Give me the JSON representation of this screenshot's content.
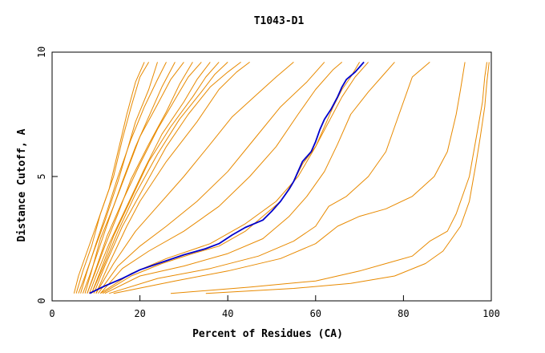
{
  "chart_data": {
    "type": "line",
    "title": "T1043-D1",
    "xlabel": "Percent of Residues (CA)",
    "ylabel": "Distance Cutoff, A",
    "xlim": [
      0,
      100
    ],
    "ylim": [
      0,
      10
    ],
    "x_ticks": [
      "0",
      "20",
      "40",
      "60",
      "80",
      "100"
    ],
    "y_ticks": [
      "0",
      "5",
      "10"
    ],
    "grid": false,
    "colors": {
      "highlight": "#0000cc",
      "others": "#e88a00",
      "axis": "#000000"
    },
    "highlight_series": {
      "points": [
        [
          8.5,
          0.3
        ],
        [
          12,
          0.6
        ],
        [
          16,
          0.9
        ],
        [
          20,
          1.25
        ],
        [
          25,
          1.55
        ],
        [
          30,
          1.85
        ],
        [
          35,
          2.1
        ],
        [
          38,
          2.3
        ],
        [
          41,
          2.65
        ],
        [
          44,
          2.95
        ],
        [
          48,
          3.25
        ],
        [
          50,
          3.6
        ],
        [
          52,
          4.0
        ],
        [
          54,
          4.5
        ],
        [
          55,
          4.8
        ],
        [
          56,
          5.2
        ],
        [
          57,
          5.6
        ],
        [
          59,
          6.0
        ],
        [
          60,
          6.4
        ],
        [
          61,
          6.9
        ],
        [
          62,
          7.3
        ],
        [
          63.5,
          7.7
        ],
        [
          65,
          8.2
        ],
        [
          66,
          8.6
        ],
        [
          67,
          8.9
        ],
        [
          69,
          9.2
        ],
        [
          71,
          9.6
        ]
      ]
    },
    "other_series": [
      {
        "points": [
          [
            5,
            0.3
          ],
          [
            6,
            1.0
          ],
          [
            8,
            2.0
          ],
          [
            10,
            3.0
          ],
          [
            13,
            4.5
          ],
          [
            15,
            6.0
          ],
          [
            17,
            7.5
          ],
          [
            19,
            8.8
          ],
          [
            21,
            9.6
          ]
        ]
      },
      {
        "points": [
          [
            5.5,
            0.3
          ],
          [
            7,
            1.2
          ],
          [
            9,
            2.2
          ],
          [
            11,
            3.5
          ],
          [
            14,
            5.0
          ],
          [
            16,
            6.5
          ],
          [
            18,
            7.8
          ],
          [
            20,
            9.0
          ],
          [
            22,
            9.6
          ]
        ]
      },
      {
        "points": [
          [
            6,
            0.3
          ],
          [
            7.5,
            1.0
          ],
          [
            9.5,
            2.0
          ],
          [
            12,
            3.2
          ],
          [
            15,
            4.8
          ],
          [
            17,
            6.0
          ],
          [
            19,
            7.2
          ],
          [
            22,
            8.5
          ],
          [
            24,
            9.6
          ]
        ]
      },
      {
        "points": [
          [
            6.5,
            0.3
          ],
          [
            8,
            1.2
          ],
          [
            10,
            2.3
          ],
          [
            12.5,
            3.6
          ],
          [
            15,
            5.0
          ],
          [
            18,
            6.5
          ],
          [
            21,
            7.8
          ],
          [
            24,
            8.9
          ],
          [
            26,
            9.6
          ]
        ]
      },
      {
        "points": [
          [
            7,
            0.3
          ],
          [
            8.5,
            1.0
          ],
          [
            10.5,
            2.0
          ],
          [
            13,
            3.3
          ],
          [
            16,
            4.8
          ],
          [
            19,
            6.2
          ],
          [
            22,
            7.4
          ],
          [
            25,
            8.6
          ],
          [
            28,
            9.6
          ]
        ]
      },
      {
        "points": [
          [
            7.5,
            0.3
          ],
          [
            9,
            1.2
          ],
          [
            11,
            2.5
          ],
          [
            14,
            3.8
          ],
          [
            17,
            5.2
          ],
          [
            20,
            6.6
          ],
          [
            24,
            7.9
          ],
          [
            27,
            8.9
          ],
          [
            30,
            9.6
          ]
        ]
      },
      {
        "points": [
          [
            8,
            0.3
          ],
          [
            9.5,
            1.0
          ],
          [
            12,
            2.2
          ],
          [
            15,
            3.5
          ],
          [
            18,
            4.9
          ],
          [
            22,
            6.3
          ],
          [
            26,
            7.6
          ],
          [
            29,
            8.7
          ],
          [
            32,
            9.6
          ]
        ]
      },
      {
        "points": [
          [
            8,
            0.3
          ],
          [
            10,
            1.3
          ],
          [
            12.5,
            2.6
          ],
          [
            16,
            4.0
          ],
          [
            20,
            5.5
          ],
          [
            24,
            6.9
          ],
          [
            28,
            8.1
          ],
          [
            31,
            9.0
          ],
          [
            34,
            9.6
          ]
        ]
      },
      {
        "points": [
          [
            8.5,
            0.3
          ],
          [
            10,
            1.0
          ],
          [
            13,
            2.3
          ],
          [
            17,
            3.8
          ],
          [
            21,
            5.3
          ],
          [
            25,
            6.7
          ],
          [
            30,
            8.0
          ],
          [
            33,
            8.9
          ],
          [
            36,
            9.6
          ]
        ]
      },
      {
        "points": [
          [
            9,
            0.3
          ],
          [
            11,
            1.2
          ],
          [
            14,
            2.6
          ],
          [
            18,
            4.1
          ],
          [
            22,
            5.6
          ],
          [
            27,
            7.0
          ],
          [
            32,
            8.2
          ],
          [
            35,
            9.0
          ],
          [
            38,
            9.6
          ]
        ]
      },
      {
        "points": [
          [
            9,
            0.3
          ],
          [
            11.5,
            1.3
          ],
          [
            15,
            2.8
          ],
          [
            19,
            4.3
          ],
          [
            24,
            5.9
          ],
          [
            29,
            7.3
          ],
          [
            34,
            8.4
          ],
          [
            37,
            9.1
          ],
          [
            40,
            9.6
          ]
        ]
      },
      {
        "points": [
          [
            9.5,
            0.3
          ],
          [
            12,
            1.4
          ],
          [
            16,
            3.0
          ],
          [
            21,
            4.6
          ],
          [
            26,
            6.2
          ],
          [
            31,
            7.5
          ],
          [
            36,
            8.6
          ],
          [
            40,
            9.2
          ],
          [
            43,
            9.6
          ]
        ]
      },
      {
        "points": [
          [
            10,
            0.3
          ],
          [
            13,
            1.5
          ],
          [
            17,
            3.0
          ],
          [
            20,
            4.0
          ],
          [
            26,
            5.6
          ],
          [
            33,
            7.2
          ],
          [
            38,
            8.5
          ],
          [
            42,
            9.2
          ],
          [
            45,
            9.6
          ]
        ]
      },
      {
        "points": [
          [
            10,
            0.3
          ],
          [
            14,
            1.5
          ],
          [
            19,
            2.8
          ],
          [
            24,
            3.8
          ],
          [
            30,
            5.0
          ],
          [
            36,
            6.3
          ],
          [
            41,
            7.4
          ],
          [
            46,
            8.2
          ],
          [
            51,
            9.0
          ],
          [
            55,
            9.6
          ]
        ]
      },
      {
        "points": [
          [
            10.5,
            0.3
          ],
          [
            15,
            1.4
          ],
          [
            20,
            2.2
          ],
          [
            26,
            3.0
          ],
          [
            33,
            4.0
          ],
          [
            40,
            5.2
          ],
          [
            46,
            6.5
          ],
          [
            52,
            7.8
          ],
          [
            58,
            8.8
          ],
          [
            62,
            9.6
          ]
        ]
      },
      {
        "points": [
          [
            11,
            0.3
          ],
          [
            16,
            1.3
          ],
          [
            22,
            2.0
          ],
          [
            30,
            2.8
          ],
          [
            38,
            3.8
          ],
          [
            45,
            5.0
          ],
          [
            51,
            6.2
          ],
          [
            56,
            7.5
          ],
          [
            60,
            8.5
          ],
          [
            64,
            9.3
          ],
          [
            66,
            9.6
          ]
        ]
      },
      {
        "points": [
          [
            11,
            0.3
          ],
          [
            18,
            1.1
          ],
          [
            26,
            1.7
          ],
          [
            36,
            2.3
          ],
          [
            44,
            3.1
          ],
          [
            51,
            4.0
          ],
          [
            56,
            5.0
          ],
          [
            60,
            6.2
          ],
          [
            63,
            7.2
          ],
          [
            66,
            8.2
          ],
          [
            69,
            9.0
          ],
          [
            72,
            9.6
          ]
        ]
      },
      {
        "points": [
          [
            11.5,
            0.3
          ],
          [
            18,
            1.0
          ],
          [
            25,
            1.5
          ],
          [
            32,
            1.9
          ],
          [
            38,
            2.2
          ],
          [
            44,
            2.8
          ],
          [
            48,
            3.4
          ],
          [
            52,
            4.0
          ],
          [
            55,
            4.8
          ],
          [
            57,
            5.5
          ],
          [
            60,
            6.2
          ],
          [
            62,
            7.0
          ],
          [
            64,
            7.8
          ],
          [
            66,
            8.5
          ],
          [
            68,
            9.0
          ],
          [
            70,
            9.6
          ]
        ]
      },
      {
        "points": [
          [
            12,
            0.3
          ],
          [
            20,
            1.0
          ],
          [
            30,
            1.4
          ],
          [
            40,
            1.9
          ],
          [
            48,
            2.5
          ],
          [
            54,
            3.4
          ],
          [
            58,
            4.2
          ],
          [
            62,
            5.2
          ],
          [
            65,
            6.3
          ],
          [
            68,
            7.5
          ],
          [
            72,
            8.4
          ],
          [
            75,
            9.0
          ],
          [
            78,
            9.6
          ]
        ]
      },
      {
        "points": [
          [
            13,
            0.3
          ],
          [
            24,
            0.9
          ],
          [
            36,
            1.3
          ],
          [
            47,
            1.8
          ],
          [
            55,
            2.4
          ],
          [
            60,
            3.0
          ],
          [
            63,
            3.8
          ],
          [
            67,
            4.2
          ],
          [
            72,
            5.0
          ],
          [
            76,
            6.0
          ],
          [
            78,
            7.0
          ],
          [
            80,
            8.0
          ],
          [
            82,
            9.0
          ],
          [
            86,
            9.6
          ]
        ]
      },
      {
        "points": [
          [
            14,
            0.3
          ],
          [
            28,
            0.8
          ],
          [
            40,
            1.2
          ],
          [
            52,
            1.7
          ],
          [
            60,
            2.3
          ],
          [
            65,
            3.0
          ],
          [
            70,
            3.4
          ],
          [
            76,
            3.7
          ],
          [
            82,
            4.2
          ],
          [
            87,
            5.0
          ],
          [
            90,
            6.0
          ],
          [
            92,
            7.5
          ],
          [
            93,
            8.5
          ],
          [
            94,
            9.6
          ]
        ]
      },
      {
        "points": [
          [
            27,
            0.3
          ],
          [
            45,
            0.55
          ],
          [
            60,
            0.8
          ],
          [
            70,
            1.2
          ],
          [
            76,
            1.5
          ],
          [
            82,
            1.8
          ],
          [
            86,
            2.4
          ],
          [
            90,
            2.8
          ],
          [
            92,
            3.5
          ],
          [
            95,
            5.0
          ],
          [
            96,
            6.0
          ],
          [
            97,
            7.0
          ],
          [
            98,
            8.0
          ],
          [
            98.5,
            9.0
          ],
          [
            99,
            9.6
          ]
        ]
      },
      {
        "points": [
          [
            35,
            0.3
          ],
          [
            55,
            0.5
          ],
          [
            68,
            0.7
          ],
          [
            78,
            1.0
          ],
          [
            85,
            1.5
          ],
          [
            89,
            2.0
          ],
          [
            91,
            2.5
          ],
          [
            93,
            3.0
          ],
          [
            95,
            4.0
          ],
          [
            96.5,
            5.5
          ],
          [
            97.5,
            6.6
          ],
          [
            98.5,
            7.8
          ],
          [
            99,
            8.8
          ],
          [
            99.5,
            9.6
          ]
        ]
      }
    ]
  }
}
